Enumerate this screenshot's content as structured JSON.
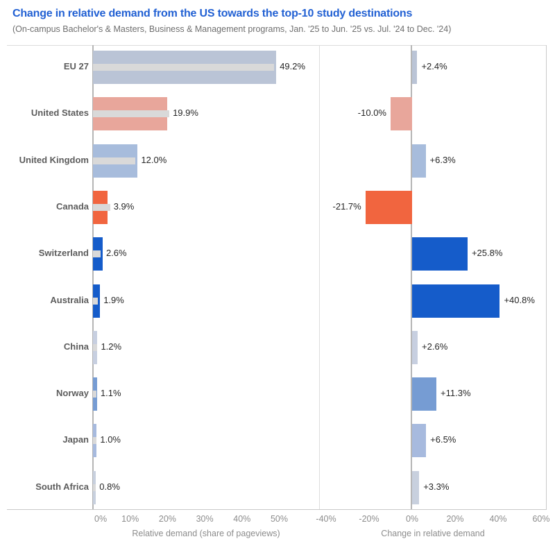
{
  "header": {
    "title": "Change in relative demand from the US towards the top-10 study destinations",
    "subtitle": "(On-campus Bachelor's & Masters, Business & Management programs, Jan. '25 to Jun. '25 vs. Jul. '24 to Dec. '24)"
  },
  "chart_data": {
    "type": "bar",
    "categories": [
      "EU 27",
      "United States",
      "United Kingdom",
      "Canada",
      "Switzerland",
      "Australia",
      "China",
      "Norway",
      "Japan",
      "South Africa"
    ],
    "bar_colors": [
      "#bac4d6",
      "#e8a69b",
      "#a7bcdc",
      "#f1653f",
      "#155cca",
      "#155cca",
      "#c7cfe0",
      "#769cd3",
      "#a7bade",
      "#c8d0de"
    ],
    "inner_bar_color": "#d9d9d9",
    "panels": [
      {
        "name": "relative-demand",
        "axis_title": "Relative demand (share of pageviews)",
        "xlim": [
          0,
          61
        ],
        "ticks": [
          {
            "value": 0,
            "label": "0%"
          },
          {
            "value": 10,
            "label": "10%"
          },
          {
            "value": 20,
            "label": "20%"
          },
          {
            "value": 30,
            "label": "30%"
          },
          {
            "value": 40,
            "label": "40%"
          },
          {
            "value": 50,
            "label": "50%"
          }
        ],
        "series": [
          {
            "name": "current-period-share",
            "values": [
              49.2,
              19.9,
              12.0,
              3.9,
              2.6,
              1.9,
              1.2,
              1.1,
              1.0,
              0.8
            ],
            "labels": [
              "49.2%",
              "19.9%",
              "12.0%",
              "3.9%",
              "2.6%",
              "1.9%",
              "1.2%",
              "1.1%",
              "1.0%",
              "0.8%"
            ]
          },
          {
            "name": "previous-period-share-inner",
            "values": [
              48.6,
              20.5,
              11.3,
              4.6,
              2.0,
              1.35,
              1.15,
              1.0,
              0.95,
              0.77
            ]
          }
        ]
      },
      {
        "name": "change-in-relative-demand",
        "axis_title": "Change in relative demand",
        "xlim": [
          -45,
          63
        ],
        "ticks": [
          {
            "value": -40,
            "label": "-40%"
          },
          {
            "value": -20,
            "label": "-20%"
          },
          {
            "value": 0,
            "label": "0%"
          },
          {
            "value": 20,
            "label": "20%"
          },
          {
            "value": 40,
            "label": "40%"
          },
          {
            "value": 60,
            "label": "60%"
          }
        ],
        "series": [
          {
            "name": "change",
            "values": [
              2.4,
              -10.0,
              6.3,
              -21.7,
              25.8,
              40.8,
              2.6,
              11.3,
              6.5,
              3.3
            ],
            "labels": [
              "+2.4%",
              "-10.0%",
              "+6.3%",
              "-21.7%",
              "+25.8%",
              "+40.8%",
              "+2.6%",
              "+11.3%",
              "+6.5%",
              "+3.3%"
            ]
          }
        ]
      }
    ]
  }
}
